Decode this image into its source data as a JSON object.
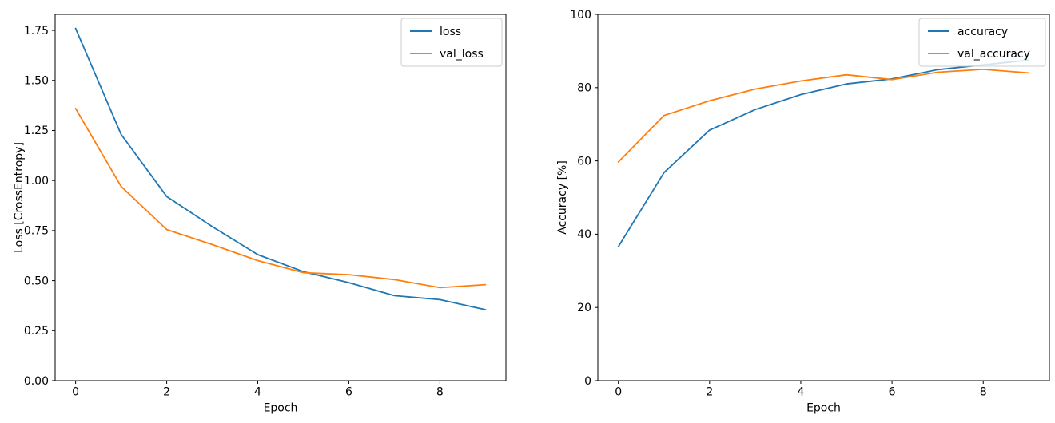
{
  "figure": {
    "background": "#ffffff",
    "axis_color": "#000000",
    "legend_border_color": "#cccccc",
    "legend_background": "#ffffff"
  },
  "chart_data": [
    {
      "id": "loss-chart",
      "type": "line",
      "title": "",
      "xlabel": "Epoch",
      "ylabel": "Loss [CrossEntropy]",
      "grid": false,
      "legend_position": "upper right",
      "xlim": [
        -0.45,
        9.45
      ],
      "ylim": [
        0,
        1.83
      ],
      "xticks": [
        0,
        2,
        4,
        6,
        8
      ],
      "xtick_labels": [
        "0",
        "2",
        "4",
        "6",
        "8"
      ],
      "yticks": [
        0,
        0.25,
        0.5,
        0.75,
        1,
        1.25,
        1.5,
        1.75
      ],
      "ytick_labels": [
        "0.00",
        "0.25",
        "0.50",
        "0.75",
        "1.00",
        "1.25",
        "1.50",
        "1.75"
      ],
      "x": [
        0,
        1,
        2,
        3,
        4,
        5,
        6,
        7,
        8,
        9
      ],
      "series": [
        {
          "name": "loss",
          "color": "#1f77b4",
          "values": [
            1.76,
            1.23,
            0.92,
            0.77,
            0.63,
            0.545,
            0.49,
            0.425,
            0.405,
            0.355
          ]
        },
        {
          "name": "val_loss",
          "color": "#ff7f0e",
          "values": [
            1.36,
            0.97,
            0.755,
            0.68,
            0.6,
            0.54,
            0.53,
            0.505,
            0.465,
            0.48
          ]
        }
      ]
    },
    {
      "id": "accuracy-chart",
      "type": "line",
      "title": "",
      "xlabel": "Epoch",
      "ylabel": "Accuracy [%]",
      "grid": false,
      "legend_position": "upper right",
      "xlim": [
        -0.45,
        9.45
      ],
      "ylim": [
        0,
        100
      ],
      "xticks": [
        0,
        2,
        4,
        6,
        8
      ],
      "xtick_labels": [
        "0",
        "2",
        "4",
        "6",
        "8"
      ],
      "yticks": [
        0,
        20,
        40,
        60,
        80,
        100
      ],
      "ytick_labels": [
        "0",
        "20",
        "40",
        "60",
        "80",
        "100"
      ],
      "x": [
        0,
        1,
        2,
        3,
        4,
        5,
        6,
        7,
        8,
        9
      ],
      "series": [
        {
          "name": "accuracy",
          "color": "#1f77b4",
          "values": [
            36.6,
            56.8,
            68.4,
            74.0,
            78.1,
            81.0,
            82.4,
            84.9,
            86.2,
            87.5
          ]
        },
        {
          "name": "val_accuracy",
          "color": "#ff7f0e",
          "values": [
            59.7,
            72.4,
            76.4,
            79.6,
            81.8,
            83.5,
            82.2,
            84.2,
            85.0,
            84.0
          ]
        }
      ]
    }
  ]
}
